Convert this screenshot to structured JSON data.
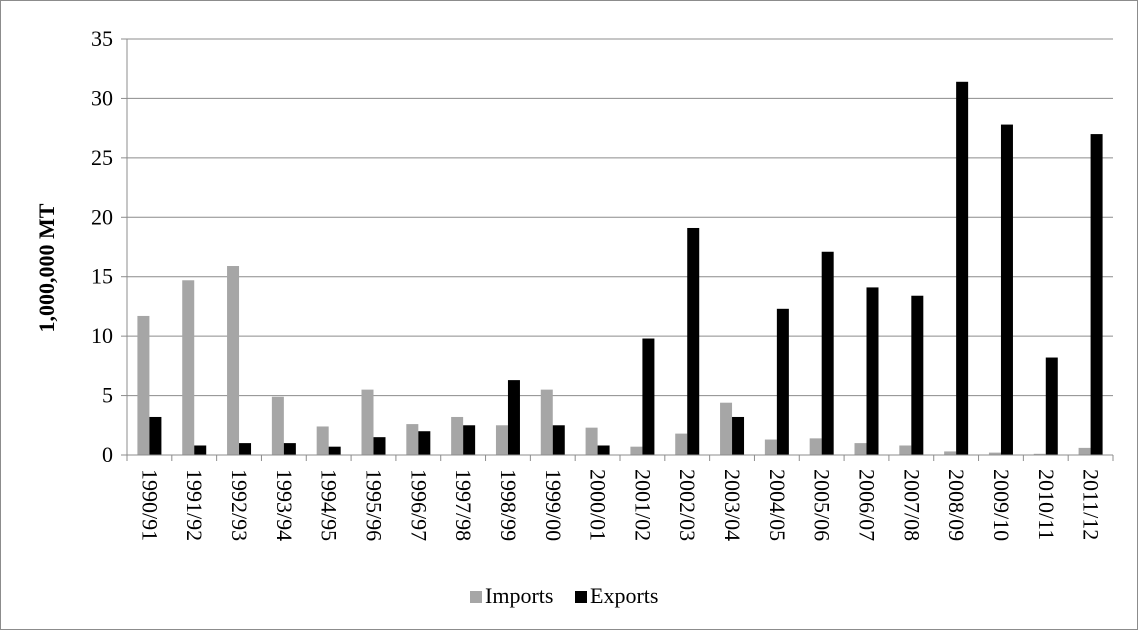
{
  "chart_data": {
    "type": "bar",
    "title": "",
    "xlabel": "",
    "ylabel": "1,000,000 MT",
    "ylim": [
      0,
      35
    ],
    "yticks": [
      0,
      5,
      10,
      15,
      20,
      25,
      30,
      35
    ],
    "grid": true,
    "legend_position": "bottom",
    "categories": [
      "1990/91",
      "1991/92",
      "1992/93",
      "1993/94",
      "1994/95",
      "1995/96",
      "1996/97",
      "1997/98",
      "1998/99",
      "1999/00",
      "2000/01",
      "2001/02",
      "2002/03",
      "2003/04",
      "2004/05",
      "2005/06",
      "2006/07",
      "2007/08",
      "2008/09",
      "2009/10",
      "2010/11",
      "2011/12"
    ],
    "series": [
      {
        "name": "Imports",
        "color": "#a6a6a6",
        "values": [
          11.7,
          14.7,
          15.9,
          4.9,
          2.4,
          5.5,
          2.6,
          3.2,
          2.5,
          5.5,
          2.3,
          0.7,
          1.8,
          4.4,
          1.3,
          1.4,
          1.0,
          0.8,
          0.3,
          0.2,
          0.1,
          0.6
        ]
      },
      {
        "name": "Exports",
        "color": "#000000",
        "values": [
          3.2,
          0.8,
          1.0,
          1.0,
          0.7,
          1.5,
          2.0,
          2.5,
          6.3,
          2.5,
          0.8,
          9.8,
          19.1,
          3.2,
          12.3,
          17.1,
          14.1,
          13.4,
          31.4,
          27.8,
          8.2,
          27.0
        ]
      }
    ]
  }
}
